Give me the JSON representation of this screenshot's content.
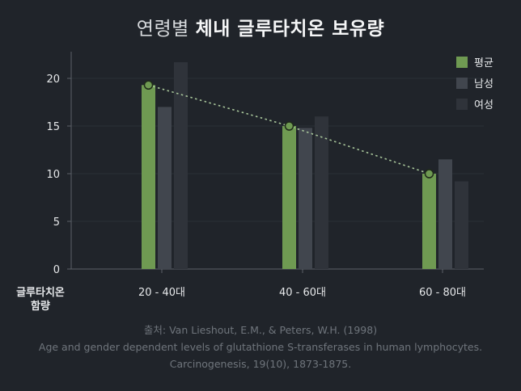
{
  "title": {
    "light": "연령별",
    "bold": "체내 글루타치온 보유량"
  },
  "chart_data": {
    "type": "bar",
    "categories": [
      "20 - 40대",
      "40 - 60대",
      "60 - 80대"
    ],
    "xlabel": "글루타치온 함량",
    "ylabel": "",
    "ylim": [
      0,
      22.5
    ],
    "yticks": [
      0,
      5,
      10,
      15,
      20
    ],
    "grid": true,
    "legend_position": "top-right",
    "series": [
      {
        "name": "평균",
        "values": [
          19.3,
          15.0,
          10.0
        ],
        "color": "#6f9a52"
      },
      {
        "name": "남성",
        "values": [
          17.0,
          14.8,
          11.5
        ],
        "color": "#41464e"
      },
      {
        "name": "여성",
        "values": [
          21.7,
          16.0,
          9.2
        ],
        "color": "#2f333a"
      }
    ],
    "trend_line": {
      "series": "평균",
      "color": "#a9c79b",
      "style": "dotted"
    }
  },
  "source": {
    "line1": "출처: Van Lieshout, E.M., & Peters, W.H. (1998)",
    "line2": "Age and gender dependent levels of glutathione S-transferases in human lymphocytes.",
    "line3": "Carcinogenesis, 19(10), 1873-1875."
  }
}
